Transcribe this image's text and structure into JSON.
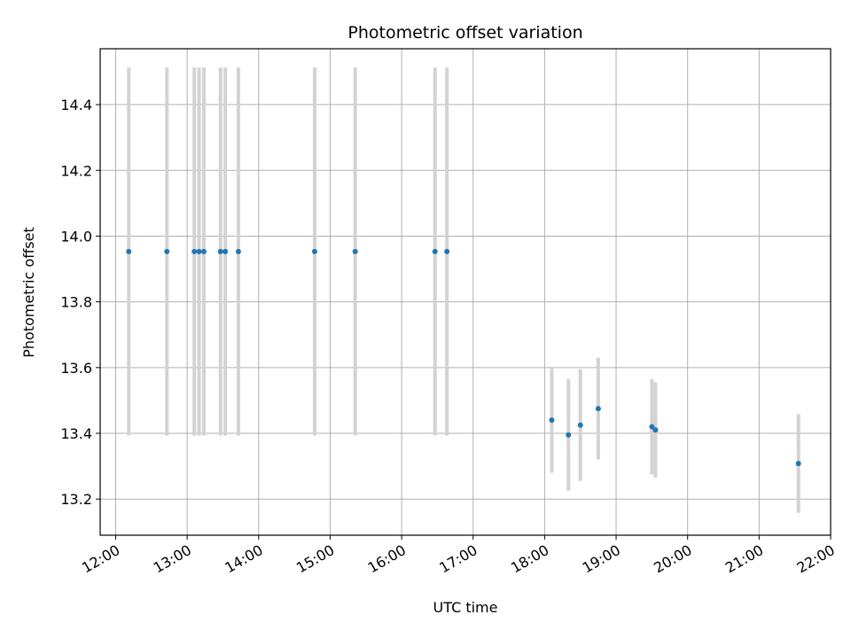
{
  "chart_data": {
    "type": "scatter",
    "title": "Photometric offset variation",
    "xlabel": "UTC time",
    "ylabel": "Photometric offset",
    "x_ticks": [
      "12:00",
      "13:00",
      "14:00",
      "15:00",
      "16:00",
      "17:00",
      "18:00",
      "19:00",
      "20:00",
      "21:00",
      "22:00"
    ],
    "y_ticks": [
      "13.2",
      "13.4",
      "13.6",
      "13.8",
      "14.0",
      "14.2",
      "14.4"
    ],
    "xlim": [
      "11:47",
      "22:00"
    ],
    "ylim": [
      13.09,
      14.57
    ],
    "grid": true,
    "colors": {
      "point": "#1f77b4",
      "errorbar": "#d3d3d3",
      "grid": "#b0b0b0"
    },
    "points": [
      {
        "x": "12:11",
        "y": 13.953,
        "err": 0.56
      },
      {
        "x": "12:43",
        "y": 13.953,
        "err": 0.56
      },
      {
        "x": "13:06",
        "y": 13.953,
        "err": 0.56
      },
      {
        "x": "13:10",
        "y": 13.953,
        "err": 0.56
      },
      {
        "x": "13:14",
        "y": 13.953,
        "err": 0.56
      },
      {
        "x": "13:28",
        "y": 13.953,
        "err": 0.56
      },
      {
        "x": "13:32",
        "y": 13.953,
        "err": 0.56
      },
      {
        "x": "13:43",
        "y": 13.953,
        "err": 0.56
      },
      {
        "x": "14:47",
        "y": 13.953,
        "err": 0.56
      },
      {
        "x": "15:21",
        "y": 13.953,
        "err": 0.56
      },
      {
        "x": "16:28",
        "y": 13.953,
        "err": 0.56
      },
      {
        "x": "16:38",
        "y": 13.953,
        "err": 0.56
      },
      {
        "x": "18:06",
        "y": 13.44,
        "err": 0.16
      },
      {
        "x": "18:20",
        "y": 13.395,
        "err": 0.17
      },
      {
        "x": "18:30",
        "y": 13.425,
        "err": 0.17
      },
      {
        "x": "18:45",
        "y": 13.475,
        "err": 0.155
      },
      {
        "x": "19:30",
        "y": 13.42,
        "err": 0.145
      },
      {
        "x": "19:33",
        "y": 13.41,
        "err": 0.145
      },
      {
        "x": "21:33",
        "y": 13.308,
        "err": 0.15
      }
    ]
  }
}
